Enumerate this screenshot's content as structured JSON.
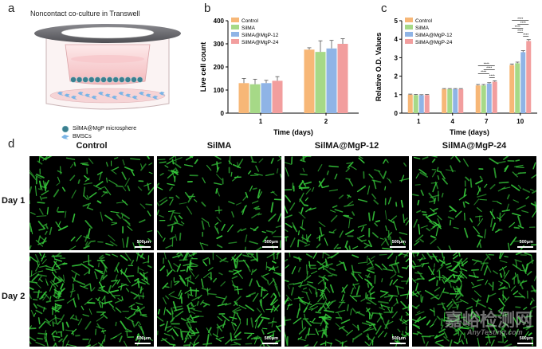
{
  "panel_a": {
    "letter": "a",
    "title": "Noncontact co-culture in Transwell",
    "legend_microsphere": "SilMA@MgP microsphere",
    "legend_bmsc": "BMSCs",
    "colors": {
      "ring": "#6f6f73",
      "insert": "#f4c6c8",
      "microsphere": "#3b7f8f",
      "bmsc": "#7ab4e6"
    }
  },
  "panel_b": {
    "letter": "b",
    "chart_data": {
      "type": "bar",
      "categories": [
        "1",
        "2"
      ],
      "series": [
        {
          "name": "Control",
          "values": [
            130,
            275
          ],
          "errors": [
            20,
            8
          ],
          "color": "#f7b777"
        },
        {
          "name": "SilMA",
          "values": [
            125,
            265
          ],
          "errors": [
            22,
            48
          ],
          "color": "#a6d987"
        },
        {
          "name": "SilMA@MgP-12",
          "values": [
            130,
            280
          ],
          "errors": [
            12,
            35
          ],
          "color": "#8fb4e6"
        },
        {
          "name": "SilMA@MgP-24",
          "values": [
            140,
            300
          ],
          "errors": [
            18,
            22
          ],
          "color": "#f29e9e"
        }
      ],
      "xlabel": "Time (days)",
      "ylabel": "Live cell count",
      "ylim": [
        0,
        400
      ],
      "yticks": [
        "0",
        "100",
        "200",
        "300",
        "400"
      ],
      "legend": "top-left"
    }
  },
  "panel_c": {
    "letter": "c",
    "chart_data": {
      "type": "bar",
      "categories": [
        "1",
        "4",
        "7",
        "10"
      ],
      "series": [
        {
          "name": "Control",
          "values": [
            1.0,
            1.3,
            1.5,
            2.6
          ],
          "errors": [
            0.03,
            0.03,
            0.05,
            0.06
          ],
          "color": "#f7b777"
        },
        {
          "name": "SilMA",
          "values": [
            0.98,
            1.3,
            1.5,
            2.7
          ],
          "errors": [
            0.03,
            0.03,
            0.05,
            0.06
          ],
          "color": "#a6d987"
        },
        {
          "name": "SilMA@MgP-12",
          "values": [
            0.97,
            1.3,
            1.6,
            3.3
          ],
          "errors": [
            0.03,
            0.03,
            0.05,
            0.08
          ],
          "color": "#8fb4e6"
        },
        {
          "name": "SilMA@MgP-24",
          "values": [
            0.98,
            1.3,
            1.7,
            3.9
          ],
          "errors": [
            0.03,
            0.03,
            0.05,
            0.08
          ],
          "color": "#f29e9e"
        }
      ],
      "xlabel": "Time (days)",
      "ylabel": "Relative O.D. Values",
      "ylim": [
        0,
        5
      ],
      "yticks": [
        "0",
        "1",
        "2",
        "3",
        "4",
        "5"
      ],
      "significance": "****",
      "legend": "top-left"
    }
  },
  "panel_d": {
    "letter": "d",
    "columns": [
      "Control",
      "SilMA",
      "SilMA@MgP-12",
      "SilMA@MgP-24"
    ],
    "rows": [
      "Day 1",
      "Day 2"
    ],
    "scale_label": "500μm",
    "cell_color": "#35c63a"
  },
  "watermark": {
    "cn": "嘉峪检测网",
    "en": "AnyTesting.com"
  }
}
